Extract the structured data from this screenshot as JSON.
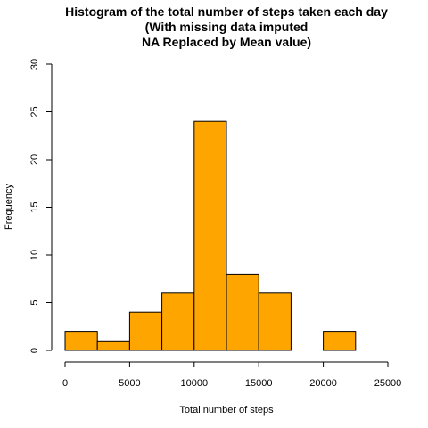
{
  "chart_data": {
    "type": "bar",
    "title_lines": [
      "Histogram of the total number of steps taken each day",
      "(With missing data imputed",
      "NA Replaced by Mean value)"
    ],
    "xlabel": "Total number of steps",
    "ylabel": "Frequency",
    "bin_edges": [
      0,
      2500,
      5000,
      7500,
      10000,
      12500,
      15000,
      17500,
      20000,
      22500
    ],
    "values": [
      2,
      1,
      4,
      6,
      24,
      8,
      6,
      0,
      2
    ],
    "xlim": [
      0,
      25000
    ],
    "ylim": [
      0,
      30
    ],
    "x_ticks": [
      0,
      5000,
      10000,
      15000,
      20000,
      25000
    ],
    "y_ticks": [
      0,
      5,
      10,
      15,
      20,
      25,
      30
    ],
    "bar_color": "#FFA500",
    "grid": false,
    "legend": "none"
  }
}
